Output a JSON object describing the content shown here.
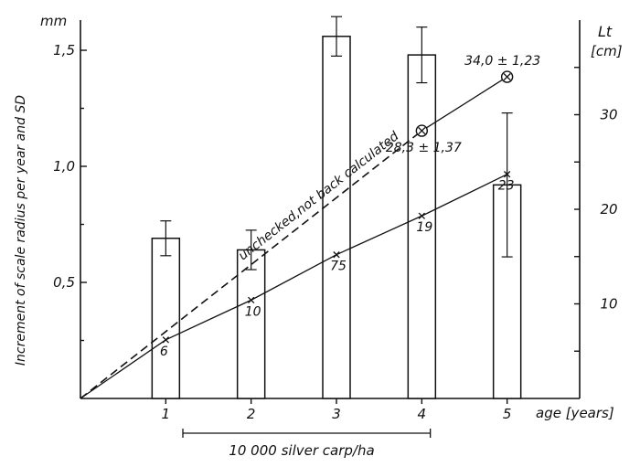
{
  "chart_data": {
    "type": "bar",
    "title": "",
    "x": {
      "label": "age [years]",
      "categories": [
        "1",
        "2",
        "3",
        "4",
        "5"
      ],
      "range": [
        0,
        5.85
      ]
    },
    "y_left": {
      "unit": "mm",
      "label": "Increment of scale radius per year and SD",
      "ticks": [
        "0,5",
        "1,0",
        "1,5"
      ],
      "tick_values": [
        0.5,
        1.0,
        1.5
      ],
      "range": [
        0,
        1.63
      ]
    },
    "y_right": {
      "label_line1": "Lt",
      "label_line2": "[cm]",
      "ticks": [
        "10",
        "20",
        "30"
      ],
      "tick_values": [
        10,
        20,
        30
      ],
      "range": [
        0,
        40
      ]
    },
    "bars": [
      {
        "age": 1,
        "value": 0.69,
        "sd": 0.075
      },
      {
        "age": 2,
        "value": 0.64,
        "sd": 0.085
      },
      {
        "age": 3,
        "value": 1.56,
        "sd": 0.085
      },
      {
        "age": 4,
        "value": 1.48,
        "sd": 0.12
      },
      {
        "age": 5,
        "value": 0.92,
        "sd": 0.31
      }
    ],
    "length_observed": {
      "points": [
        {
          "age": 0,
          "lt": 0
        },
        {
          "age": 1,
          "lt": 6.2,
          "n": "6"
        },
        {
          "age": 2,
          "lt": 10.4,
          "n": "10"
        },
        {
          "age": 3,
          "lt": 15.2,
          "n": "75"
        },
        {
          "age": 4,
          "lt": 19.3,
          "n": "19"
        },
        {
          "age": 5,
          "lt": 23.7,
          "n": "23"
        }
      ]
    },
    "length_unchecked": {
      "label": "unchecked,not back calculated",
      "points": [
        {
          "age": 0,
          "lt": 0
        },
        {
          "age": 4,
          "lt": 28.3
        },
        {
          "age": 5,
          "lt": 34.0
        }
      ],
      "annotations": [
        {
          "age": 4,
          "lt": 28.3,
          "text": "28,3 ± 1,37"
        },
        {
          "age": 5,
          "lt": 34.0,
          "text": "34,0 ± 1,23"
        }
      ]
    },
    "period": {
      "label": "10 000 silver carp/ha",
      "from_age": 1.2,
      "to_age": 4.1
    }
  }
}
